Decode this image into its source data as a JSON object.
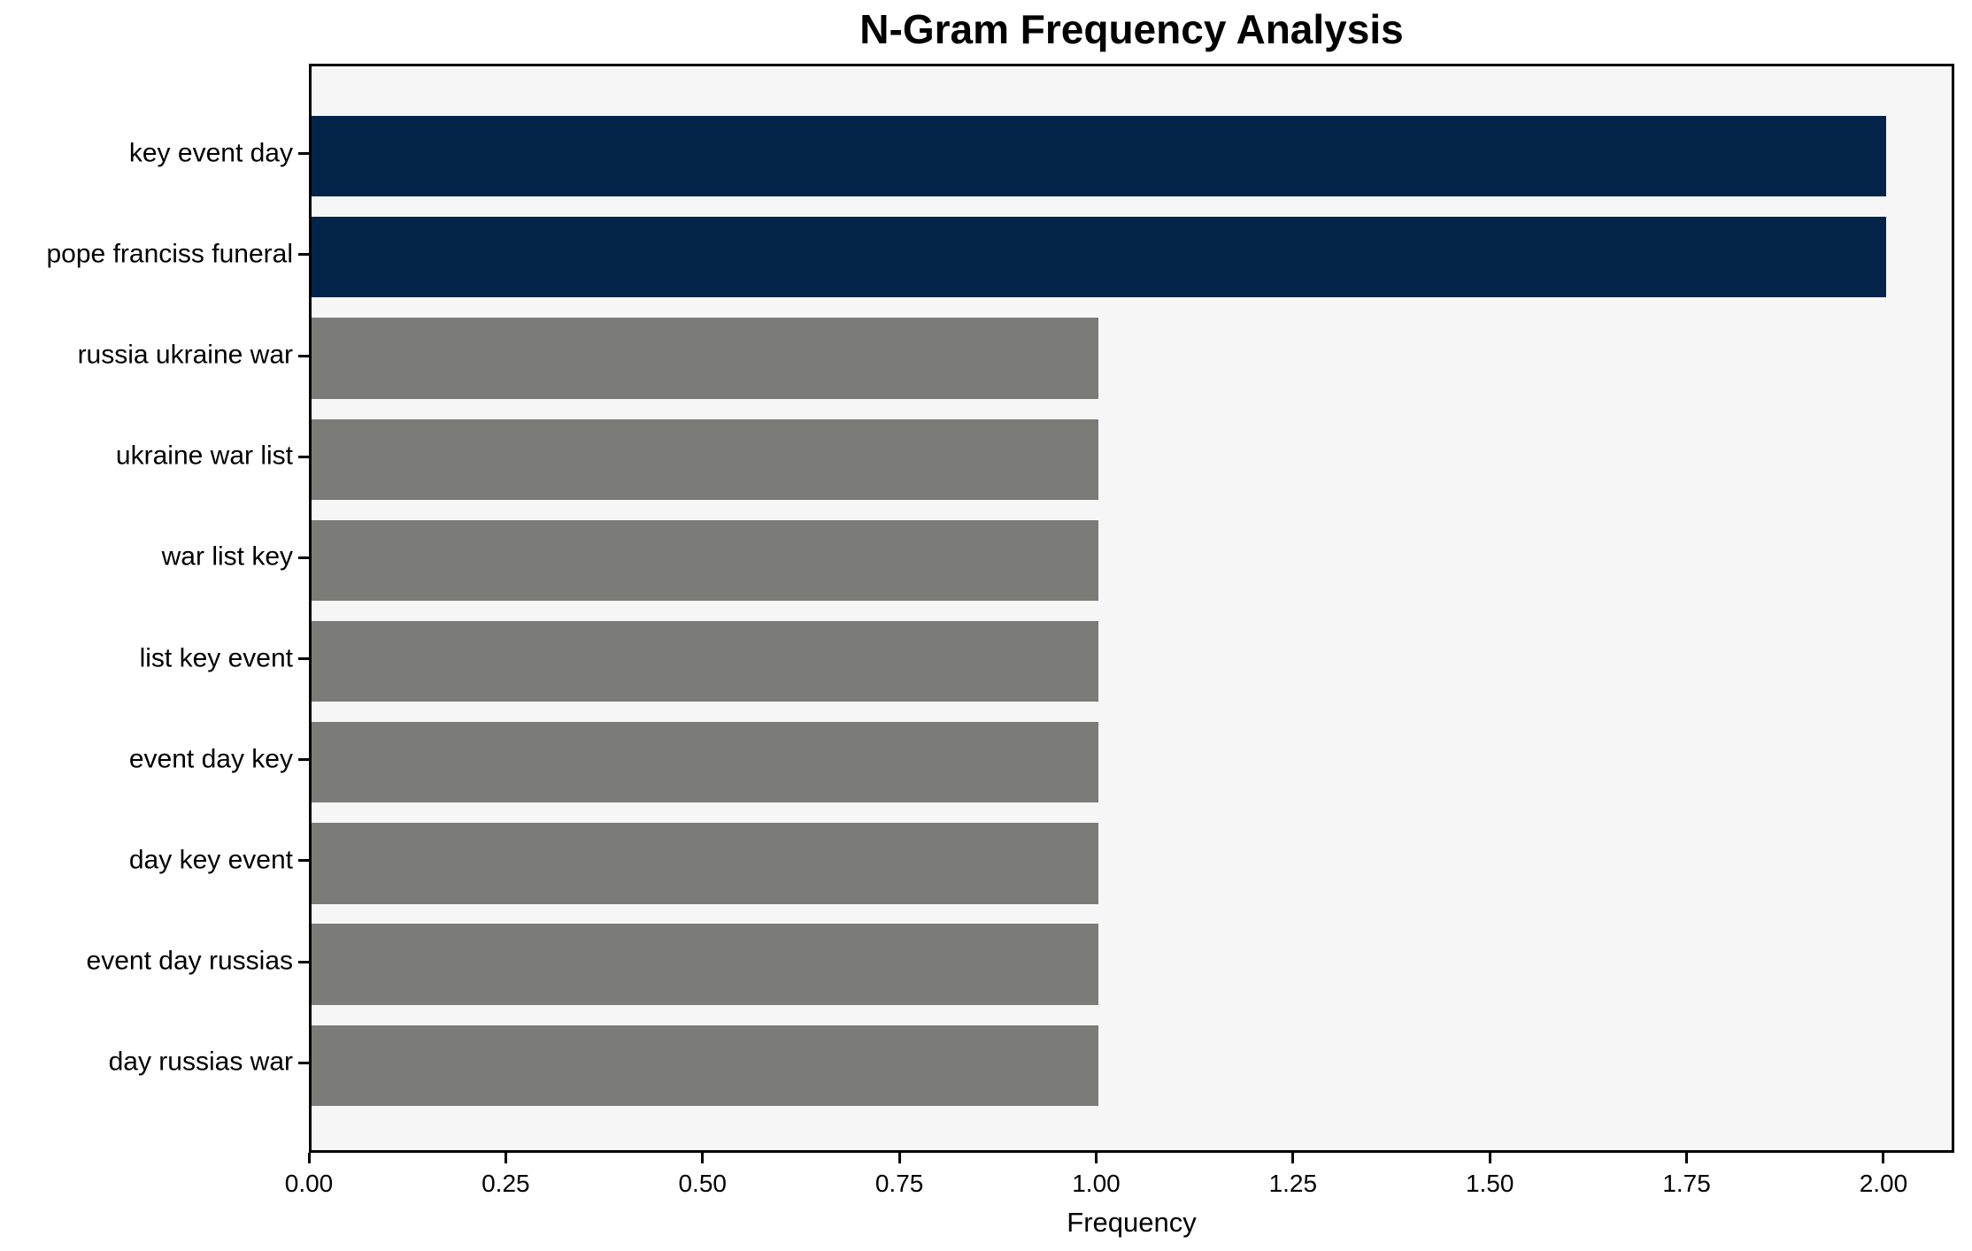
{
  "chart_data": {
    "type": "bar",
    "orientation": "horizontal",
    "title": "N-Gram Frequency Analysis",
    "xlabel": "Frequency",
    "ylabel": "",
    "categories": [
      "key event day",
      "pope franciss funeral",
      "russia ukraine war",
      "ukraine war list",
      "war list key",
      "list key event",
      "event day key",
      "day key event",
      "event day russias",
      "day russias war"
    ],
    "values": [
      2,
      2,
      1,
      1,
      1,
      1,
      1,
      1,
      1,
      1
    ],
    "bar_colors": [
      "#042349",
      "#042349",
      "#7b7b78",
      "#7b7b78",
      "#7b7b78",
      "#7b7b78",
      "#7b7b78",
      "#7b7b78",
      "#7b7b78",
      "#7b7b78"
    ],
    "highlight_color": "#042349",
    "default_color": "#7b7b78",
    "plot_background": "#f7f6f6",
    "x_ticks": [
      "0.00",
      "0.25",
      "0.50",
      "0.75",
      "1.00",
      "1.25",
      "1.50",
      "1.75",
      "2.00"
    ],
    "x_tick_values": [
      0,
      0.25,
      0.5,
      0.75,
      1.0,
      1.25,
      1.5,
      1.75,
      2.0
    ],
    "xlim": [
      0,
      2.09
    ],
    "grid": false,
    "legend_position": "none"
  }
}
